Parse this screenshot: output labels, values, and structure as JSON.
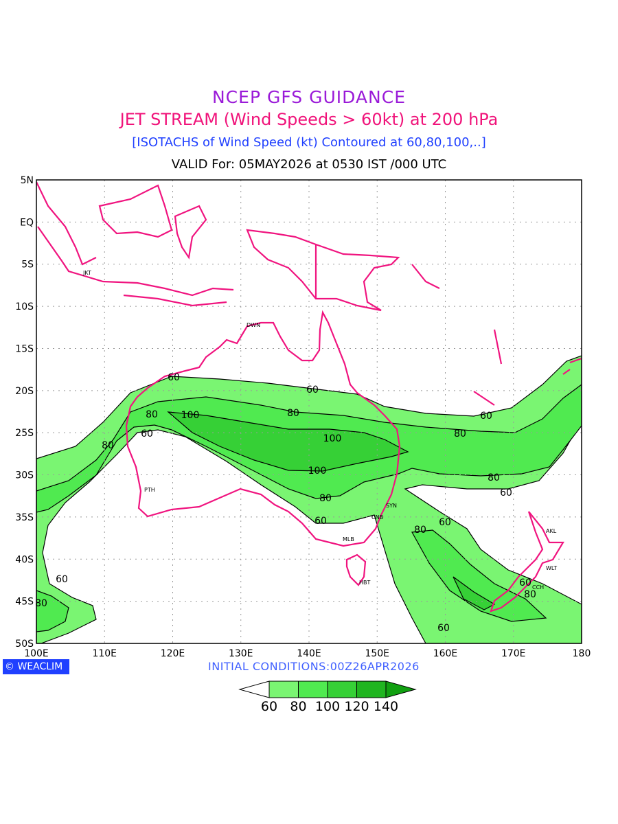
{
  "titles": {
    "line1": "NCEP GFS GUIDANCE",
    "line2": "JET STREAM (Wind Speeds > 60kt) at 200 hPa",
    "line3": "[ISOTACHS of Wind Speed (kt) Contoured at 60,80,100,..]",
    "valid": "VALID For: 05MAY2026 at 0530 IST /000 UTC"
  },
  "initial_conditions": "INITIAL  CONDITIONS:00Z26APR2026",
  "logo": {
    "symbol": "©",
    "text": "WEACLIM"
  },
  "axes": {
    "lat_labels": [
      "5N",
      "EQ",
      "5S",
      "10S",
      "15S",
      "20S",
      "25S",
      "30S",
      "35S",
      "40S",
      "45S",
      "50S"
    ],
    "lon_labels": [
      "100E",
      "110E",
      "120E",
      "130E",
      "140E",
      "150E",
      "160E",
      "170E",
      "180"
    ]
  },
  "cities": [
    "JKT",
    "DWN",
    "PTH",
    "MLB",
    "CNB",
    "SYN",
    "HBT",
    "AKL",
    "WLT",
    "CCH"
  ],
  "contour_labels": {
    "c60": "60",
    "c80": "80",
    "c100": "100"
  },
  "legend": {
    "labels": [
      "60",
      "80",
      "100",
      "120",
      "140"
    ],
    "colors": [
      "#ffffff",
      "#7af572",
      "#50ea50",
      "#36d036",
      "#20b520",
      "#11a011"
    ]
  },
  "colors": {
    "coast": "#f0147f",
    "grid": "#999999"
  }
}
